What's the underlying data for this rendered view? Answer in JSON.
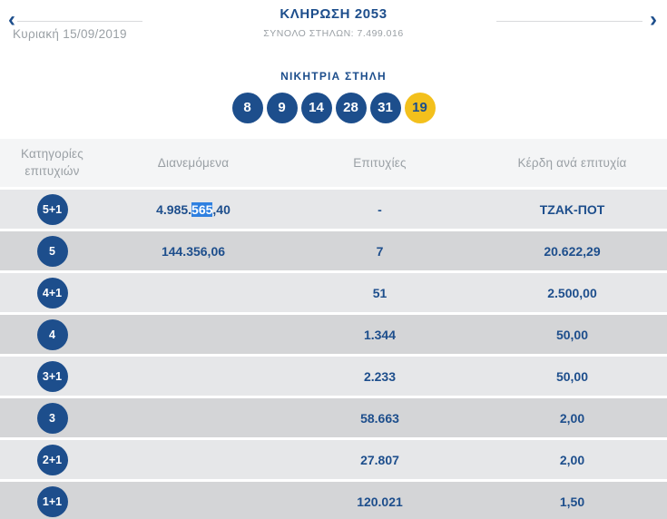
{
  "header": {
    "title": "ΚΛΗΡΩΣΗ 2053",
    "subtitle": "ΣΥΝΟΛΟ ΣΤΗΛΩΝ: 7.499.016",
    "date": "Κυριακή 15/09/2019"
  },
  "icons": {
    "chevron_left": "‹",
    "chevron_right": "›"
  },
  "winning": {
    "label": "ΝΙΚΗΤΡΙΑ ΣΤΗΛΗ",
    "numbers": [
      "8",
      "9",
      "14",
      "28",
      "31"
    ],
    "bonus": "19"
  },
  "table": {
    "columns": {
      "category": "Κατηγορίες επιτυχιών",
      "distributed": "Διανεμόμενα",
      "wins": "Επιτυχίες",
      "per_win": "Κέρδη ανά επιτυχία"
    },
    "rows": [
      {
        "category": "5+1",
        "dist_prefix": "4.985.",
        "dist_selected": "565",
        "dist_suffix": ",40",
        "distributed": "4.985.565,40",
        "wins": "-",
        "per_win": "ΤΖΑΚ-ΠΟΤ"
      },
      {
        "category": "5",
        "distributed": "144.356,06",
        "wins": "7",
        "per_win": "20.622,29"
      },
      {
        "category": "4+1",
        "distributed": "",
        "wins": "51",
        "per_win": "2.500,00"
      },
      {
        "category": "4",
        "distributed": "",
        "wins": "1.344",
        "per_win": "50,00"
      },
      {
        "category": "3+1",
        "distributed": "",
        "wins": "2.233",
        "per_win": "50,00"
      },
      {
        "category": "3",
        "distributed": "",
        "wins": "58.663",
        "per_win": "2,00"
      },
      {
        "category": "2+1",
        "distributed": "",
        "wins": "27.807",
        "per_win": "2,00"
      },
      {
        "category": "1+1",
        "distributed": "",
        "wins": "120.021",
        "per_win": "1,50"
      }
    ]
  },
  "colors": {
    "navy": "#1d4e8c",
    "bonus_yellow": "#f3c01c",
    "selection_blue": "#2f80e0",
    "row_light": "#e6e7e9",
    "row_dark": "#d4d5d7"
  }
}
